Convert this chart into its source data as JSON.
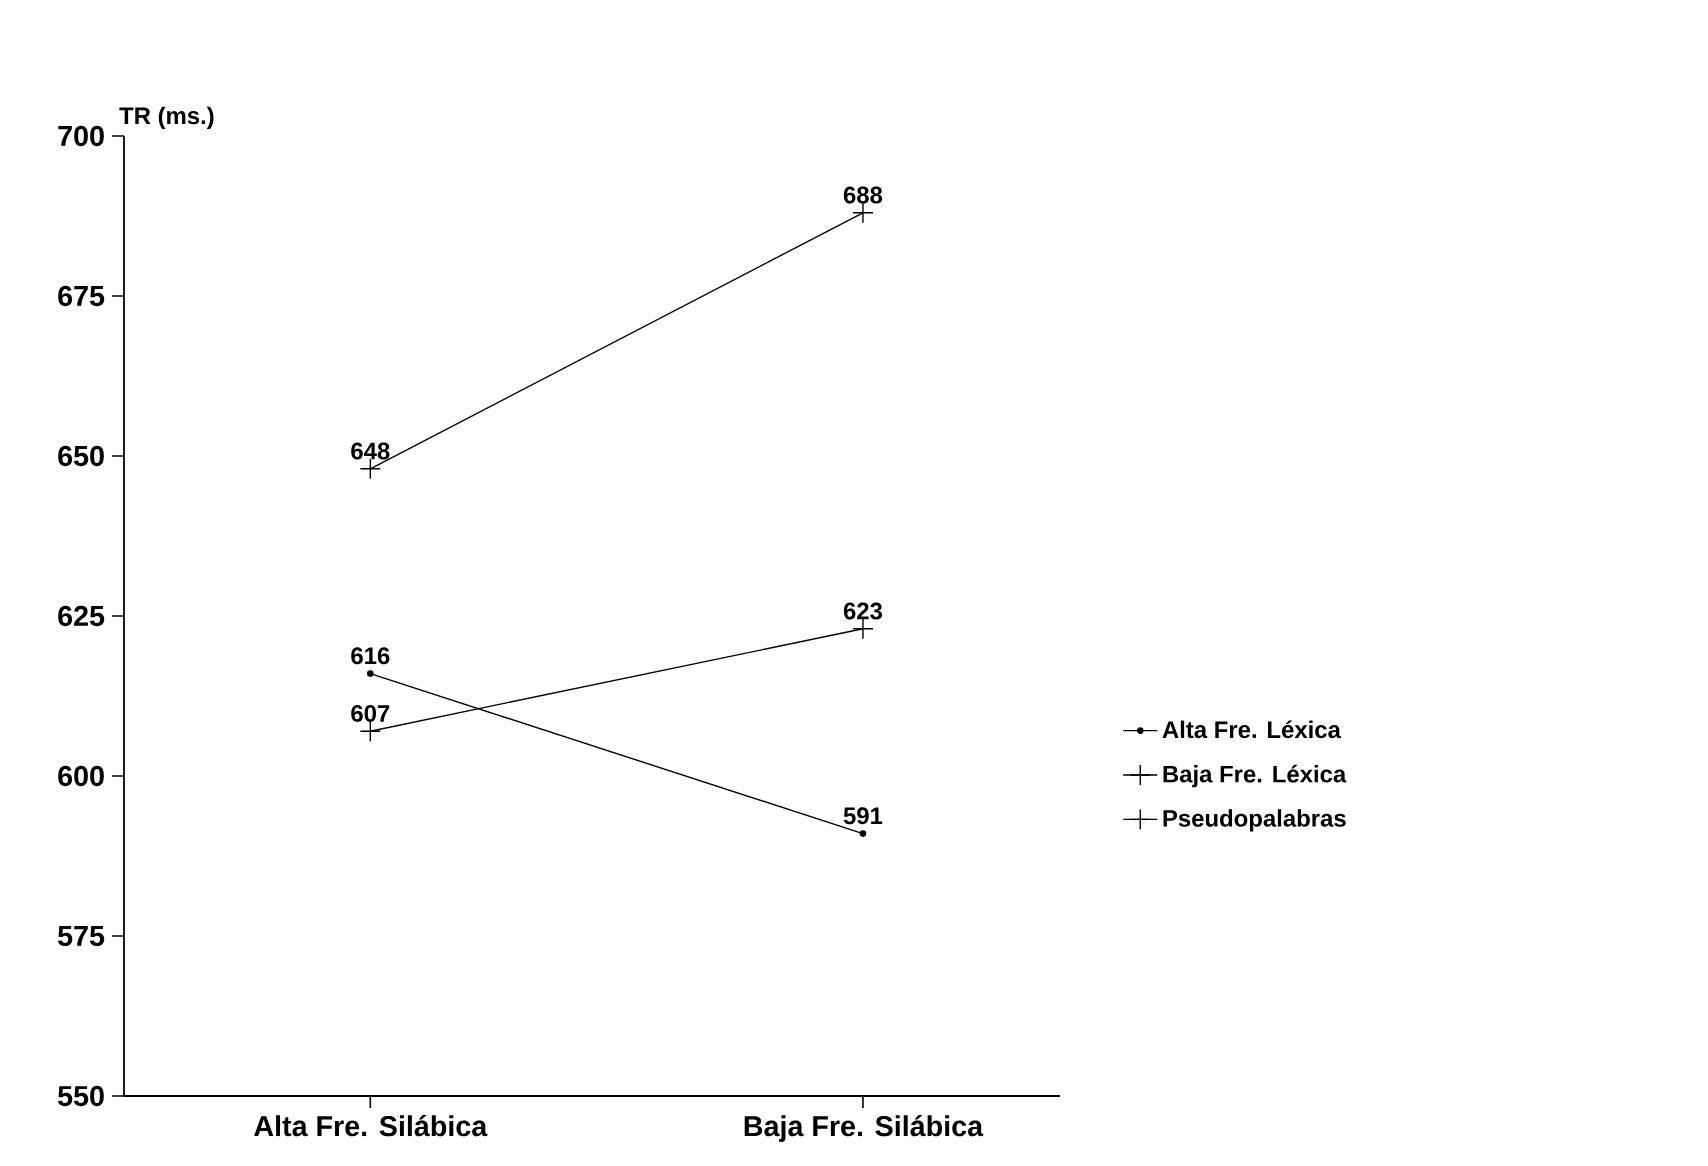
{
  "chart_data": {
    "type": "line",
    "ylabel": "TR (ms.)",
    "categories": [
      "Alta Fre. Silábica",
      "Baja Fre. Silábica"
    ],
    "series": [
      {
        "name": "Alta Fre. Léxica",
        "color": "#000000",
        "marker": "circle",
        "values": [
          616,
          591
        ]
      },
      {
        "name": "Baja Fre. Léxica",
        "color": "#000000",
        "marker": "cross",
        "values": [
          607,
          623
        ]
      },
      {
        "name": "Pseudopalabras",
        "color": "#000000",
        "marker": "cross",
        "values": [
          648,
          688
        ]
      }
    ],
    "ylim": [
      550,
      700
    ],
    "yticks": [
      550,
      575,
      600,
      625,
      650,
      675,
      700
    ],
    "data_labels": true,
    "legend": "right",
    "grid": false,
    "line_style": "solid"
  }
}
